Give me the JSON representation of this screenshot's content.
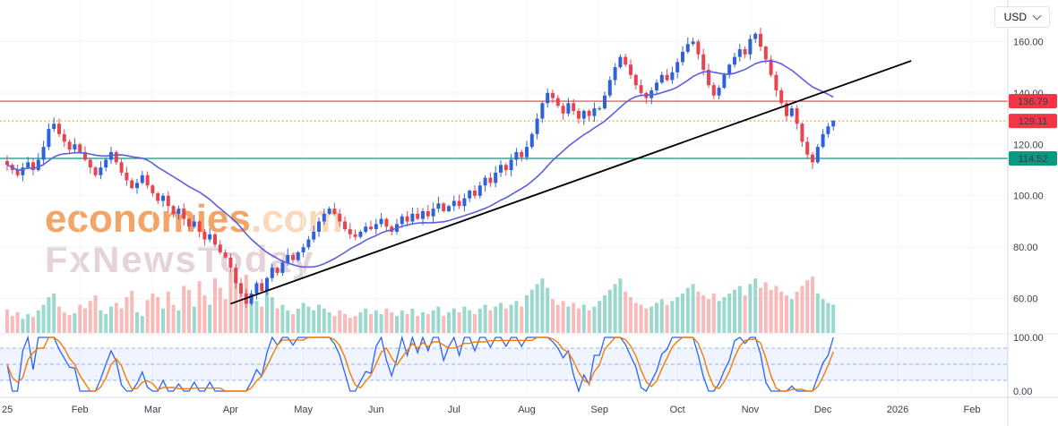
{
  "toolbar": {
    "currency_label": "USD"
  },
  "watermark": {
    "brand": "economies",
    "suffix": ".com",
    "line2": "FxNewsToday"
  },
  "price_axis": {
    "ticks": [
      "160.00",
      "140.00",
      "120.00",
      "100.00",
      "80.00",
      "60.00"
    ],
    "tick_values": [
      160,
      140,
      120,
      100,
      80,
      60
    ]
  },
  "oscillator_axis": {
    "ticks": [
      "100.00",
      "0.00"
    ],
    "tick_values": [
      100,
      0
    ]
  },
  "time_axis": {
    "labels": [
      "25",
      "Feb",
      "Mar",
      "Apr",
      "May",
      "Jun",
      "Jul",
      "Aug",
      "Sep",
      "Oct",
      "Nov",
      "Dec",
      "2026",
      "Feb"
    ]
  },
  "levels": [
    {
      "label": "136.79",
      "value": 136.79,
      "line_color": "#e23b4d",
      "line_style": "solid",
      "badge_bg": "#f23645",
      "badge_fg": "#ffffff"
    },
    {
      "label": "129.11",
      "value": 129.11,
      "line_color": "#ff9100",
      "line_style": "dotted",
      "badge_bg": "#f23645",
      "badge_fg": "#ffffff"
    },
    {
      "label": "114.52",
      "value": 114.52,
      "line_color": "#089981",
      "line_style": "solid",
      "badge_bg": "#089981",
      "badge_fg": "#ffffff"
    }
  ],
  "chart_data": {
    "type": "candlestick",
    "panes": [
      "price+volume",
      "stochastic"
    ],
    "currency": "USD",
    "x_range": [
      "Jan 2025",
      "Dec 2025"
    ],
    "price_range": [
      55,
      168
    ],
    "oscillator_range": [
      0,
      100
    ],
    "last_price": 129.11,
    "resistance": 136.79,
    "support": 114.52,
    "closes": [
      112,
      110,
      108,
      111,
      113,
      110,
      114,
      119,
      126,
      128,
      124,
      121,
      118,
      120,
      117,
      114,
      111,
      108,
      111,
      114,
      117,
      113,
      109,
      106,
      103,
      105,
      108,
      104,
      101,
      98,
      100,
      96,
      93,
      95,
      91,
      88,
      90,
      86,
      83,
      85,
      81,
      78,
      76,
      72,
      66,
      62,
      58,
      62,
      66,
      63,
      68,
      72,
      70,
      74,
      77,
      75,
      78,
      80,
      83,
      86,
      90,
      93,
      95,
      93,
      90,
      87,
      85,
      84,
      86,
      88,
      87,
      89,
      91,
      88,
      86,
      89,
      92,
      90,
      93,
      91,
      94,
      92,
      95,
      97,
      94,
      96,
      98,
      96,
      99,
      102,
      100,
      104,
      107,
      105,
      109,
      112,
      110,
      114,
      117,
      115,
      119,
      124,
      130,
      136,
      140,
      138,
      135,
      132,
      136,
      133,
      130,
      133,
      131,
      134,
      134,
      139,
      145,
      150,
      154,
      151,
      147,
      143,
      140,
      138,
      141,
      144,
      147,
      145,
      148,
      152,
      156,
      159,
      160,
      155,
      149,
      143,
      139,
      142,
      147,
      151,
      154,
      157,
      155,
      161,
      163,
      158,
      153,
      147,
      141,
      136,
      131,
      134,
      128,
      121,
      116,
      113,
      119,
      124,
      127,
      129.11
    ],
    "volumes": [
      25,
      18,
      22,
      15,
      20,
      17,
      24,
      30,
      38,
      42,
      28,
      22,
      19,
      21,
      30,
      26,
      34,
      40,
      24,
      20,
      28,
      32,
      26,
      38,
      45,
      22,
      18,
      35,
      42,
      38,
      26,
      44,
      30,
      24,
      50,
      46,
      28,
      55,
      40,
      30,
      58,
      48,
      36,
      65,
      58,
      50,
      62,
      40,
      34,
      28,
      44,
      38,
      26,
      30,
      24,
      20,
      26,
      32,
      28,
      24,
      30,
      26,
      22,
      18,
      24,
      20,
      16,
      18,
      22,
      26,
      20,
      24,
      20,
      26,
      22,
      18,
      24,
      20,
      26,
      18,
      22,
      20,
      24,
      28,
      18,
      22,
      26,
      22,
      28,
      24,
      20,
      26,
      30,
      24,
      28,
      32,
      26,
      30,
      34,
      28,
      40,
      46,
      52,
      58,
      48,
      36,
      30,
      34,
      28,
      32,
      26,
      30,
      24,
      28,
      34,
      40,
      46,
      52,
      58,
      44,
      38,
      32,
      30,
      26,
      28,
      32,
      36,
      30,
      34,
      38,
      42,
      48,
      52,
      44,
      40,
      36,
      42,
      34,
      38,
      42,
      46,
      50,
      40,
      52,
      58,
      48,
      54,
      46,
      50,
      44,
      40,
      36,
      44,
      50,
      56,
      60,
      42,
      36,
      32,
      30
    ],
    "month_start_bars": [
      0,
      14,
      28,
      43,
      57,
      71,
      86,
      100,
      114,
      129,
      143,
      157
    ],
    "ma": {
      "period": 20,
      "color": "#5b5fe0"
    },
    "trendline": {
      "start": {
        "bar": 43,
        "price": 58
      },
      "end": {
        "bar": 174,
        "price": 152.5
      },
      "color": "#000000"
    },
    "stochastic": {
      "k_period": 8,
      "d_period": 3,
      "upper_band": 80,
      "middle_band": 50,
      "lower_band": 20,
      "k_color": "#2962ff",
      "d_color": "#f57c00",
      "band_fill": "rgba(41,98,255,0.07)",
      "band_line_color": "rgba(41,98,255,0.45)"
    },
    "colors": {
      "up": "#2f62d9",
      "down": "#e8434f",
      "vol_up": "rgba(34,171,148,0.45)",
      "vol_down": "rgba(239,83,80,0.40)"
    }
  }
}
